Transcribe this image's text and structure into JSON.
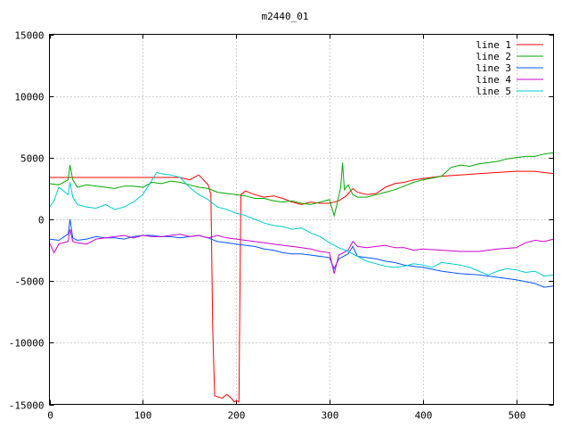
{
  "chart_data": {
    "type": "line",
    "title": "m2440_01",
    "xlabel": "",
    "ylabel": "",
    "xlim": [
      0,
      540
    ],
    "ylim": [
      -15000,
      15000
    ],
    "x_ticks": [
      0,
      100,
      200,
      300,
      400,
      500
    ],
    "y_ticks": [
      -15000,
      -10000,
      -5000,
      0,
      5000,
      10000,
      15000
    ],
    "grid": true,
    "legend_position": "top-right",
    "series": [
      {
        "name": "line 1",
        "color": "#ff0000",
        "points": [
          [
            0,
            3400
          ],
          [
            50,
            3400
          ],
          [
            100,
            3400
          ],
          [
            140,
            3400
          ],
          [
            150,
            3200
          ],
          [
            160,
            3600
          ],
          [
            165,
            3200
          ],
          [
            170,
            2800
          ],
          [
            173,
            2000
          ],
          [
            175,
            -9000
          ],
          [
            177,
            -14300
          ],
          [
            185,
            -14500
          ],
          [
            190,
            -14200
          ],
          [
            195,
            -14500
          ],
          [
            198,
            -14800
          ],
          [
            200,
            -14700
          ],
          [
            203,
            -14800
          ],
          [
            205,
            2000
          ],
          [
            210,
            2300
          ],
          [
            220,
            2000
          ],
          [
            230,
            1800
          ],
          [
            240,
            1900
          ],
          [
            250,
            1700
          ],
          [
            260,
            1400
          ],
          [
            270,
            1200
          ],
          [
            280,
            1400
          ],
          [
            290,
            1300
          ],
          [
            300,
            1300
          ],
          [
            310,
            1500
          ],
          [
            318,
            1900
          ],
          [
            325,
            2500
          ],
          [
            330,
            2200
          ],
          [
            340,
            2000
          ],
          [
            350,
            2100
          ],
          [
            360,
            2600
          ],
          [
            370,
            2900
          ],
          [
            380,
            3000
          ],
          [
            390,
            3200
          ],
          [
            400,
            3300
          ],
          [
            420,
            3500
          ],
          [
            440,
            3600
          ],
          [
            460,
            3700
          ],
          [
            480,
            3800
          ],
          [
            500,
            3900
          ],
          [
            520,
            3900
          ],
          [
            540,
            3700
          ]
        ]
      },
      {
        "name": "line 2",
        "color": "#00aa00",
        "points": [
          [
            0,
            2900
          ],
          [
            10,
            2800
          ],
          [
            20,
            3200
          ],
          [
            22,
            4400
          ],
          [
            25,
            3200
          ],
          [
            30,
            2600
          ],
          [
            40,
            2800
          ],
          [
            50,
            2700
          ],
          [
            60,
            2600
          ],
          [
            70,
            2500
          ],
          [
            80,
            2700
          ],
          [
            90,
            2700
          ],
          [
            100,
            2600
          ],
          [
            110,
            3000
          ],
          [
            120,
            2900
          ],
          [
            130,
            3100
          ],
          [
            140,
            3000
          ],
          [
            150,
            2800
          ],
          [
            160,
            2600
          ],
          [
            170,
            2500
          ],
          [
            180,
            2200
          ],
          [
            190,
            2100
          ],
          [
            200,
            2000
          ],
          [
            210,
            1900
          ],
          [
            220,
            1700
          ],
          [
            230,
            1700
          ],
          [
            240,
            1500
          ],
          [
            250,
            1400
          ],
          [
            260,
            1500
          ],
          [
            270,
            1300
          ],
          [
            280,
            1200
          ],
          [
            290,
            1400
          ],
          [
            300,
            1600
          ],
          [
            305,
            300
          ],
          [
            308,
            1200
          ],
          [
            312,
            2600
          ],
          [
            314,
            4600
          ],
          [
            316,
            2400
          ],
          [
            320,
            2800
          ],
          [
            325,
            2000
          ],
          [
            330,
            1800
          ],
          [
            340,
            1800
          ],
          [
            350,
            2000
          ],
          [
            360,
            2200
          ],
          [
            370,
            2400
          ],
          [
            380,
            2700
          ],
          [
            390,
            3000
          ],
          [
            400,
            3200
          ],
          [
            420,
            3500
          ],
          [
            430,
            4200
          ],
          [
            440,
            4400
          ],
          [
            450,
            4300
          ],
          [
            460,
            4500
          ],
          [
            470,
            4600
          ],
          [
            480,
            4700
          ],
          [
            490,
            4900
          ],
          [
            500,
            5000
          ],
          [
            510,
            5100
          ],
          [
            520,
            5100
          ],
          [
            530,
            5300
          ],
          [
            540,
            5400
          ]
        ]
      },
      {
        "name": "line 3",
        "color": "#0055ff",
        "points": [
          [
            0,
            -1600
          ],
          [
            10,
            -1700
          ],
          [
            20,
            -1200
          ],
          [
            22,
            0
          ],
          [
            25,
            -1500
          ],
          [
            30,
            -1700
          ],
          [
            40,
            -1600
          ],
          [
            50,
            -1400
          ],
          [
            60,
            -1500
          ],
          [
            70,
            -1500
          ],
          [
            80,
            -1600
          ],
          [
            90,
            -1400
          ],
          [
            100,
            -1300
          ],
          [
            110,
            -1300
          ],
          [
            120,
            -1400
          ],
          [
            130,
            -1400
          ],
          [
            140,
            -1500
          ],
          [
            150,
            -1400
          ],
          [
            160,
            -1300
          ],
          [
            170,
            -1500
          ],
          [
            180,
            -1800
          ],
          [
            190,
            -1900
          ],
          [
            200,
            -2000
          ],
          [
            210,
            -2100
          ],
          [
            220,
            -2200
          ],
          [
            230,
            -2400
          ],
          [
            240,
            -2500
          ],
          [
            250,
            -2700
          ],
          [
            260,
            -2800
          ],
          [
            270,
            -2800
          ],
          [
            280,
            -2900
          ],
          [
            290,
            -3000
          ],
          [
            300,
            -3100
          ],
          [
            305,
            -4000
          ],
          [
            310,
            -3200
          ],
          [
            320,
            -2800
          ],
          [
            325,
            -2200
          ],
          [
            330,
            -3000
          ],
          [
            340,
            -3100
          ],
          [
            350,
            -3200
          ],
          [
            360,
            -3400
          ],
          [
            370,
            -3500
          ],
          [
            380,
            -3700
          ],
          [
            390,
            -3800
          ],
          [
            400,
            -3900
          ],
          [
            420,
            -4200
          ],
          [
            440,
            -4400
          ],
          [
            460,
            -4500
          ],
          [
            480,
            -4700
          ],
          [
            500,
            -4900
          ],
          [
            520,
            -5200
          ],
          [
            530,
            -5500
          ],
          [
            540,
            -5400
          ]
        ]
      },
      {
        "name": "line 4",
        "color": "#cc00cc",
        "points": [
          [
            0,
            -1900
          ],
          [
            5,
            -2700
          ],
          [
            10,
            -2000
          ],
          [
            20,
            -1800
          ],
          [
            22,
            -800
          ],
          [
            25,
            -1800
          ],
          [
            30,
            -1900
          ],
          [
            40,
            -2000
          ],
          [
            50,
            -1600
          ],
          [
            60,
            -1500
          ],
          [
            70,
            -1400
          ],
          [
            80,
            -1300
          ],
          [
            90,
            -1500
          ],
          [
            100,
            -1300
          ],
          [
            110,
            -1400
          ],
          [
            120,
            -1400
          ],
          [
            130,
            -1300
          ],
          [
            140,
            -1200
          ],
          [
            150,
            -1400
          ],
          [
            160,
            -1300
          ],
          [
            170,
            -1500
          ],
          [
            180,
            -1300
          ],
          [
            190,
            -1500
          ],
          [
            200,
            -1600
          ],
          [
            210,
            -1700
          ],
          [
            220,
            -1800
          ],
          [
            230,
            -1900
          ],
          [
            240,
            -2000
          ],
          [
            250,
            -2100
          ],
          [
            260,
            -2200
          ],
          [
            270,
            -2300
          ],
          [
            280,
            -2400
          ],
          [
            290,
            -2600
          ],
          [
            300,
            -2700
          ],
          [
            305,
            -4400
          ],
          [
            310,
            -2900
          ],
          [
            320,
            -2500
          ],
          [
            325,
            -1800
          ],
          [
            330,
            -2200
          ],
          [
            340,
            -2300
          ],
          [
            350,
            -2200
          ],
          [
            360,
            -2100
          ],
          [
            370,
            -2300
          ],
          [
            380,
            -2300
          ],
          [
            390,
            -2500
          ],
          [
            400,
            -2400
          ],
          [
            420,
            -2500
          ],
          [
            440,
            -2600
          ],
          [
            460,
            -2600
          ],
          [
            480,
            -2400
          ],
          [
            500,
            -2300
          ],
          [
            510,
            -1900
          ],
          [
            520,
            -1700
          ],
          [
            530,
            -1800
          ],
          [
            540,
            -1600
          ]
        ]
      },
      {
        "name": "line 5",
        "color": "#00cccc",
        "points": [
          [
            0,
            1000
          ],
          [
            5,
            1500
          ],
          [
            10,
            2600
          ],
          [
            20,
            2000
          ],
          [
            22,
            3000
          ],
          [
            25,
            1800
          ],
          [
            30,
            1200
          ],
          [
            40,
            1000
          ],
          [
            50,
            900
          ],
          [
            60,
            1200
          ],
          [
            70,
            800
          ],
          [
            80,
            1000
          ],
          [
            90,
            1400
          ],
          [
            100,
            2000
          ],
          [
            110,
            3200
          ],
          [
            115,
            3800
          ],
          [
            120,
            3700
          ],
          [
            130,
            3600
          ],
          [
            140,
            3400
          ],
          [
            150,
            2600
          ],
          [
            160,
            2000
          ],
          [
            170,
            1600
          ],
          [
            180,
            1000
          ],
          [
            190,
            800
          ],
          [
            200,
            500
          ],
          [
            210,
            300
          ],
          [
            220,
            0
          ],
          [
            230,
            -300
          ],
          [
            240,
            -500
          ],
          [
            250,
            -600
          ],
          [
            260,
            -800
          ],
          [
            270,
            -700
          ],
          [
            280,
            -1100
          ],
          [
            290,
            -1400
          ],
          [
            300,
            -1900
          ],
          [
            310,
            -2300
          ],
          [
            320,
            -2600
          ],
          [
            330,
            -3000
          ],
          [
            340,
            -3400
          ],
          [
            350,
            -3600
          ],
          [
            360,
            -3800
          ],
          [
            370,
            -3900
          ],
          [
            380,
            -3800
          ],
          [
            390,
            -3600
          ],
          [
            400,
            -3700
          ],
          [
            410,
            -3900
          ],
          [
            420,
            -3500
          ],
          [
            430,
            -3600
          ],
          [
            440,
            -3700
          ],
          [
            450,
            -3900
          ],
          [
            460,
            -4200
          ],
          [
            470,
            -4500
          ],
          [
            480,
            -4200
          ],
          [
            490,
            -4000
          ],
          [
            500,
            -4100
          ],
          [
            510,
            -4300
          ],
          [
            520,
            -4200
          ],
          [
            530,
            -4600
          ],
          [
            540,
            -4500
          ]
        ]
      }
    ]
  }
}
